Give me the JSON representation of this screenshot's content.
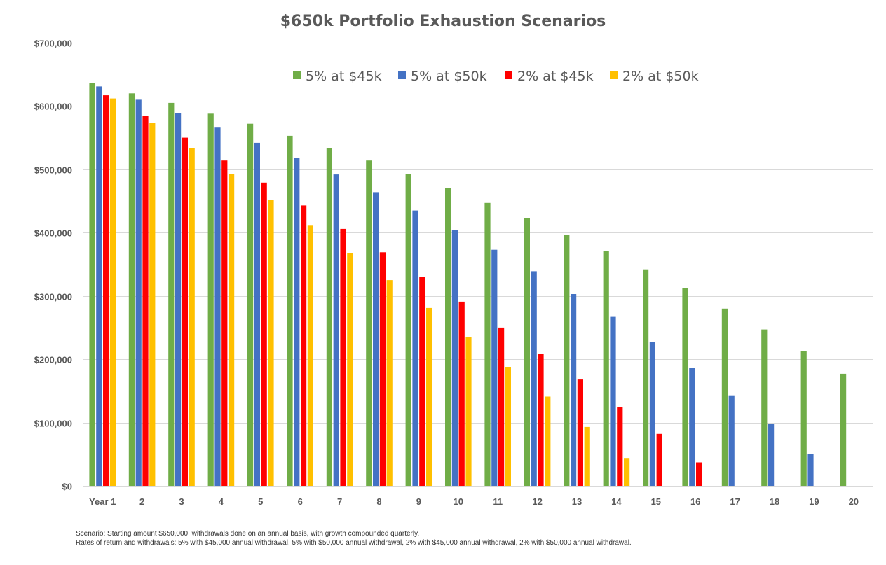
{
  "chart_data": {
    "type": "bar",
    "title": "$650k Portfolio Exhaustion Scenarios",
    "xlabel": "",
    "ylabel": "",
    "ylim": [
      0,
      700000
    ],
    "yticks": [
      0,
      100000,
      200000,
      300000,
      400000,
      500000,
      600000,
      700000
    ],
    "ytick_labels": [
      "$0",
      "$100,000",
      "$200,000",
      "$300,000",
      "$400,000",
      "$500,000",
      "$600,000",
      "$700,000"
    ],
    "categories": [
      "Year 1",
      "2",
      "3",
      "4",
      "5",
      "6",
      "7",
      "8",
      "9",
      "10",
      "11",
      "12",
      "13",
      "14",
      "15",
      "16",
      "17",
      "18",
      "19",
      "20"
    ],
    "grid": true,
    "legend_position": "top-center",
    "series": [
      {
        "name": "5% at $45k",
        "color": "#70ad47",
        "values": [
          636000,
          620000,
          605000,
          588000,
          572000,
          553000,
          534000,
          514000,
          493000,
          471000,
          447000,
          423000,
          397000,
          371000,
          342000,
          312000,
          280000,
          247000,
          213000,
          177000
        ]
      },
      {
        "name": "5% at $50k",
        "color": "#4472c4",
        "values": [
          631000,
          610000,
          589000,
          566000,
          542000,
          518000,
          492000,
          464000,
          435000,
          404000,
          373000,
          339000,
          303000,
          267000,
          227000,
          186000,
          143000,
          98000,
          50000,
          0
        ]
      },
      {
        "name": "2% at $45k",
        "color": "#ff0000",
        "values": [
          617000,
          584000,
          550000,
          514000,
          479000,
          443000,
          406000,
          369000,
          330000,
          291000,
          250000,
          209000,
          168000,
          125000,
          82000,
          37000,
          0,
          0,
          0,
          0
        ]
      },
      {
        "name": "2% at $50k",
        "color": "#ffc000",
        "values": [
          612000,
          573000,
          534000,
          493000,
          452000,
          411000,
          368000,
          325000,
          281000,
          235000,
          188000,
          141000,
          93000,
          44000,
          0,
          0,
          0,
          0,
          0,
          0
        ]
      }
    ]
  },
  "footnotes": {
    "line1": "Scenario: Starting amount $650,000, withdrawals done on an annual basis, with growth compounded quarterly.",
    "line2": "Rates of return and withdrawals: 5% with $45,000 annual withdrawal, 5% with $50,000 annual withdrawal, 2% with $45,000 annual withdrawal, 2% with $50,000 annual withdrawal."
  }
}
